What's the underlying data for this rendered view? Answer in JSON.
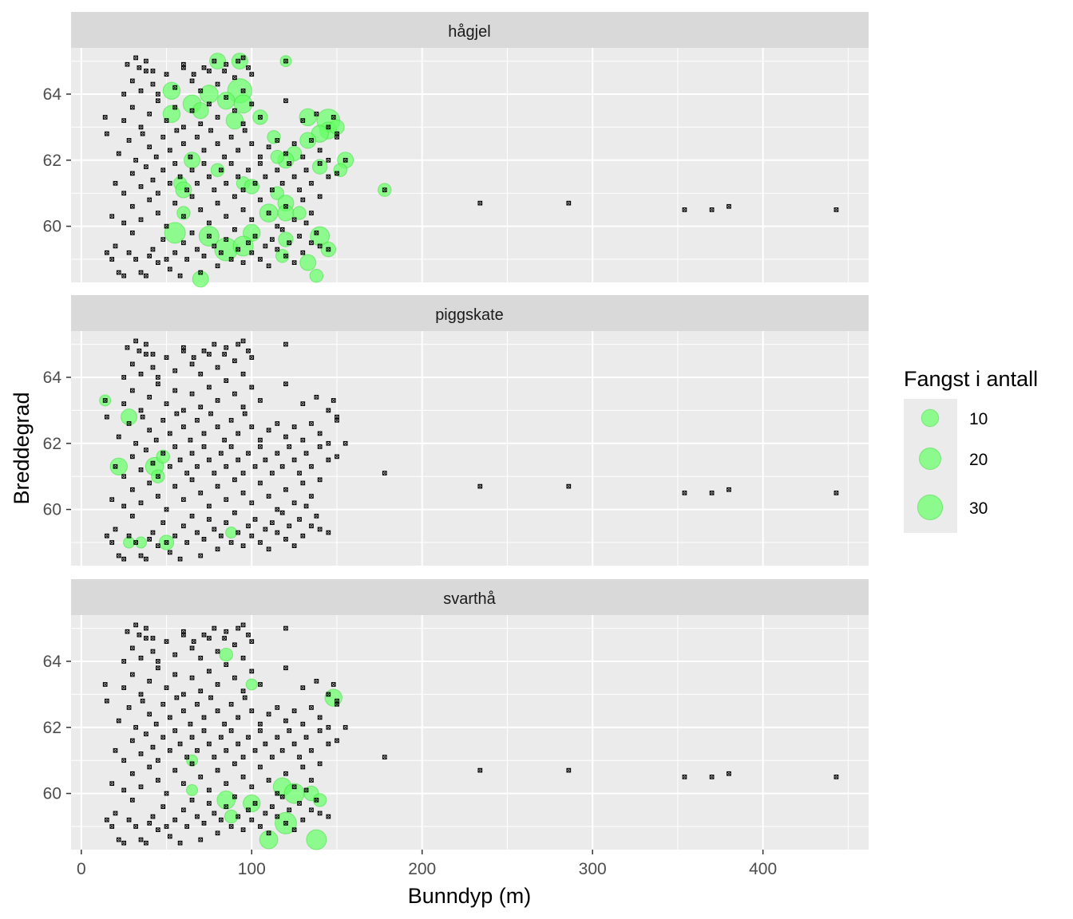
{
  "chart_data": {
    "type": "scatter",
    "xlabel": "Bunndyp (m)",
    "ylabel": "Breddegrad",
    "xlim": [
      -6,
      462
    ],
    "ylim": [
      58.3,
      65.4
    ],
    "x_ticks": [
      0,
      100,
      200,
      300,
      400
    ],
    "y_ticks": [
      60,
      62,
      64
    ],
    "grid": true,
    "legend": {
      "title": "Fangst i antall",
      "position": "right",
      "entries": [
        {
          "label": "10",
          "value": 10
        },
        {
          "label": "20",
          "value": 20
        },
        {
          "label": "30",
          "value": 30
        }
      ]
    },
    "colors": {
      "bubble": "#66ff66",
      "panel_bg": "#ebebeb",
      "strip_bg": "#d9d9d9",
      "station": "#000000"
    },
    "stations": [
      [
        15,
        59.2
      ],
      [
        22,
        58.6
      ],
      [
        25,
        58.5
      ],
      [
        18,
        59.0
      ],
      [
        20,
        59.4
      ],
      [
        28,
        59.2
      ],
      [
        32,
        59.0
      ],
      [
        35,
        58.6
      ],
      [
        38,
        58.5
      ],
      [
        30,
        59.8
      ],
      [
        40,
        59.1
      ],
      [
        42,
        59.3
      ],
      [
        45,
        58.9
      ],
      [
        48,
        59.6
      ],
      [
        50,
        59.0
      ],
      [
        52,
        58.7
      ],
      [
        55,
        59.2
      ],
      [
        58,
        58.5
      ],
      [
        60,
        59.5
      ],
      [
        62,
        59.0
      ],
      [
        65,
        59.8
      ],
      [
        68,
        59.3
      ],
      [
        70,
        58.6
      ],
      [
        72,
        59.1
      ],
      [
        75,
        59.7
      ],
      [
        78,
        59.4
      ],
      [
        80,
        58.8
      ],
      [
        82,
        59.2
      ],
      [
        85,
        59.6
      ],
      [
        88,
        59.0
      ],
      [
        90,
        59.9
      ],
      [
        92,
        59.3
      ],
      [
        95,
        58.9
      ],
      [
        98,
        59.5
      ],
      [
        100,
        59.2
      ],
      [
        102,
        59.7
      ],
      [
        105,
        59.0
      ],
      [
        108,
        59.4
      ],
      [
        110,
        58.8
      ],
      [
        112,
        59.6
      ],
      [
        115,
        59.3
      ],
      [
        118,
        59.9
      ],
      [
        120,
        59.1
      ],
      [
        122,
        59.5
      ],
      [
        125,
        58.9
      ],
      [
        128,
        59.7
      ],
      [
        130,
        59.2
      ],
      [
        132,
        60.1
      ],
      [
        135,
        59.5
      ],
      [
        138,
        59.8
      ],
      [
        140,
        59.4
      ],
      [
        145,
        59.3
      ],
      [
        18,
        60.3
      ],
      [
        25,
        60.1
      ],
      [
        30,
        60.6
      ],
      [
        35,
        60.2
      ],
      [
        40,
        60.8
      ],
      [
        45,
        60.4
      ],
      [
        50,
        60.0
      ],
      [
        55,
        60.7
      ],
      [
        60,
        60.3
      ],
      [
        65,
        60.9
      ],
      [
        70,
        60.5
      ],
      [
        75,
        60.1
      ],
      [
        80,
        60.7
      ],
      [
        85,
        60.3
      ],
      [
        90,
        60.9
      ],
      [
        95,
        60.5
      ],
      [
        100,
        60.2
      ],
      [
        105,
        60.8
      ],
      [
        110,
        60.4
      ],
      [
        115,
        60.0
      ],
      [
        120,
        60.6
      ],
      [
        125,
        60.2
      ],
      [
        130,
        60.8
      ],
      [
        135,
        60.4
      ],
      [
        140,
        60.9
      ],
      [
        20,
        61.3
      ],
      [
        25,
        61.0
      ],
      [
        30,
        61.6
      ],
      [
        35,
        61.2
      ],
      [
        38,
        61.8
      ],
      [
        42,
        61.4
      ],
      [
        45,
        61.0
      ],
      [
        48,
        61.7
      ],
      [
        52,
        61.3
      ],
      [
        55,
        61.9
      ],
      [
        58,
        61.5
      ],
      [
        62,
        61.1
      ],
      [
        65,
        61.7
      ],
      [
        68,
        61.3
      ],
      [
        72,
        61.9
      ],
      [
        75,
        61.5
      ],
      [
        78,
        61.1
      ],
      [
        82,
        61.7
      ],
      [
        85,
        61.3
      ],
      [
        88,
        61.9
      ],
      [
        92,
        61.5
      ],
      [
        95,
        61.1
      ],
      [
        98,
        61.7
      ],
      [
        102,
        61.3
      ],
      [
        105,
        61.9
      ],
      [
        108,
        61.5
      ],
      [
        112,
        61.1
      ],
      [
        115,
        61.7
      ],
      [
        118,
        61.3
      ],
      [
        122,
        61.9
      ],
      [
        125,
        61.5
      ],
      [
        128,
        61.1
      ],
      [
        132,
        61.7
      ],
      [
        135,
        61.3
      ],
      [
        140,
        61.9
      ],
      [
        145,
        61.5
      ],
      [
        150,
        61.6
      ],
      [
        155,
        62.0
      ],
      [
        22,
        62.2
      ],
      [
        28,
        62.6
      ],
      [
        32,
        62.0
      ],
      [
        36,
        62.8
      ],
      [
        40,
        62.4
      ],
      [
        44,
        62.1
      ],
      [
        48,
        62.7
      ],
      [
        52,
        62.3
      ],
      [
        56,
        62.9
      ],
      [
        60,
        62.5
      ],
      [
        64,
        62.1
      ],
      [
        68,
        62.7
      ],
      [
        72,
        62.3
      ],
      [
        76,
        62.9
      ],
      [
        80,
        62.5
      ],
      [
        84,
        62.1
      ],
      [
        88,
        62.7
      ],
      [
        92,
        62.3
      ],
      [
        96,
        62.9
      ],
      [
        100,
        62.5
      ],
      [
        105,
        62.1
      ],
      [
        110,
        62.4
      ],
      [
        115,
        62.6
      ],
      [
        120,
        62.2
      ],
      [
        125,
        62.5
      ],
      [
        130,
        62.1
      ],
      [
        135,
        62.6
      ],
      [
        140,
        62.3
      ],
      [
        145,
        62.0
      ],
      [
        150,
        62.7
      ],
      [
        14,
        63.3
      ],
      [
        15,
        62.8
      ],
      [
        25,
        63.2
      ],
      [
        30,
        63.6
      ],
      [
        35,
        63.0
      ],
      [
        40,
        63.4
      ],
      [
        45,
        63.8
      ],
      [
        50,
        63.2
      ],
      [
        55,
        63.6
      ],
      [
        60,
        63.0
      ],
      [
        65,
        63.5
      ],
      [
        70,
        63.1
      ],
      [
        75,
        63.7
      ],
      [
        80,
        63.3
      ],
      [
        85,
        63.9
      ],
      [
        90,
        63.5
      ],
      [
        95,
        63.1
      ],
      [
        100,
        63.7
      ],
      [
        105,
        63.3
      ],
      [
        130,
        63.2
      ],
      [
        138,
        63.4
      ],
      [
        145,
        63.0
      ],
      [
        148,
        63.3
      ],
      [
        150,
        62.8
      ],
      [
        25,
        64.0
      ],
      [
        30,
        64.4
      ],
      [
        35,
        64.1
      ],
      [
        38,
        64.7
      ],
      [
        42,
        64.3
      ],
      [
        45,
        64.0
      ],
      [
        50,
        64.6
      ],
      [
        55,
        64.2
      ],
      [
        60,
        64.8
      ],
      [
        65,
        64.4
      ],
      [
        70,
        64.1
      ],
      [
        75,
        64.7
      ],
      [
        80,
        64.3
      ],
      [
        85,
        64.9
      ],
      [
        90,
        64.5
      ],
      [
        95,
        64.1
      ],
      [
        100,
        64.6
      ],
      [
        120,
        63.8
      ],
      [
        27,
        64.9
      ],
      [
        32,
        65.1
      ],
      [
        34,
        64.8
      ],
      [
        38,
        65.0
      ],
      [
        42,
        64.7
      ],
      [
        60,
        64.9
      ],
      [
        66,
        64.6
      ],
      [
        72,
        64.8
      ],
      [
        78,
        65.0
      ],
      [
        84,
        64.7
      ],
      [
        92,
        65.0
      ],
      [
        95,
        65.1
      ],
      [
        98,
        64.8
      ],
      [
        120,
        65.0
      ],
      [
        178,
        61.1
      ],
      [
        234,
        60.7
      ],
      [
        286,
        60.7
      ],
      [
        354,
        60.5
      ],
      [
        370,
        60.5
      ],
      [
        380,
        60.6
      ],
      [
        443,
        60.5
      ]
    ],
    "facets": [
      {
        "label": "hågjel",
        "catches": [
          [
            80,
            65.0,
            8
          ],
          [
            93,
            65.0,
            8
          ],
          [
            120,
            65.0,
            2
          ],
          [
            53,
            64.1,
            10
          ],
          [
            75,
            64.0,
            12
          ],
          [
            93,
            64.1,
            28
          ],
          [
            85,
            63.8,
            10
          ],
          [
            65,
            63.7,
            12
          ],
          [
            95,
            63.7,
            12
          ],
          [
            53,
            63.4,
            10
          ],
          [
            70,
            63.5,
            8
          ],
          [
            90,
            63.2,
            10
          ],
          [
            105,
            63.3,
            6
          ],
          [
            145,
            63.2,
            24
          ],
          [
            133,
            63.3,
            10
          ],
          [
            145,
            62.9,
            10
          ],
          [
            150,
            63.0,
            6
          ],
          [
            140,
            62.8,
            10
          ],
          [
            133,
            62.6,
            8
          ],
          [
            113,
            62.7,
            4
          ],
          [
            125,
            62.2,
            6
          ],
          [
            155,
            62.0,
            8
          ],
          [
            152,
            61.7,
            4
          ],
          [
            140,
            61.8,
            6
          ],
          [
            120,
            62.0,
            8
          ],
          [
            115,
            62.1,
            4
          ],
          [
            65,
            62.0,
            8
          ],
          [
            80,
            61.7,
            4
          ],
          [
            58,
            61.3,
            4
          ],
          [
            60,
            61.1,
            8
          ],
          [
            95,
            61.3,
            4
          ],
          [
            100,
            61.2,
            6
          ],
          [
            115,
            61.0,
            4
          ],
          [
            120,
            60.7,
            8
          ],
          [
            110,
            60.4,
            12
          ],
          [
            120,
            60.4,
            8
          ],
          [
            140,
            59.7,
            14
          ],
          [
            55,
            59.8,
            18
          ],
          [
            75,
            59.7,
            16
          ],
          [
            100,
            59.8,
            10
          ],
          [
            85,
            59.3,
            24
          ],
          [
            95,
            59.4,
            16
          ],
          [
            120,
            59.6,
            6
          ],
          [
            118,
            59.1,
            4
          ],
          [
            133,
            58.9,
            8
          ],
          [
            145,
            59.3,
            6
          ],
          [
            138,
            58.5,
            4
          ],
          [
            70,
            58.4,
            8
          ],
          [
            128,
            60.4,
            4
          ],
          [
            60,
            60.4,
            4
          ],
          [
            178,
            61.1,
            4
          ]
        ]
      },
      {
        "label": "piggskate",
        "catches": [
          [
            14,
            63.3,
            2
          ],
          [
            28,
            62.8,
            8
          ],
          [
            22,
            61.3,
            10
          ],
          [
            43,
            61.3,
            12
          ],
          [
            48,
            61.6,
            4
          ],
          [
            45,
            61.0,
            4
          ],
          [
            28,
            59.0,
            2
          ],
          [
            35,
            59.0,
            2
          ],
          [
            50,
            59.0,
            6
          ],
          [
            88,
            59.3,
            2
          ]
        ]
      },
      {
        "label": "svarthå",
        "catches": [
          [
            85,
            64.2,
            4
          ],
          [
            100,
            63.3,
            2
          ],
          [
            148,
            62.9,
            10
          ],
          [
            65,
            61.0,
            2
          ],
          [
            65,
            60.1,
            2
          ],
          [
            118,
            60.2,
            12
          ],
          [
            125,
            60.0,
            16
          ],
          [
            135,
            60.0,
            6
          ],
          [
            140,
            59.8,
            4
          ],
          [
            85,
            59.8,
            12
          ],
          [
            100,
            59.7,
            10
          ],
          [
            88,
            59.3,
            4
          ],
          [
            120,
            59.1,
            20
          ],
          [
            110,
            58.6,
            12
          ],
          [
            138,
            58.6,
            16
          ]
        ]
      }
    ]
  }
}
